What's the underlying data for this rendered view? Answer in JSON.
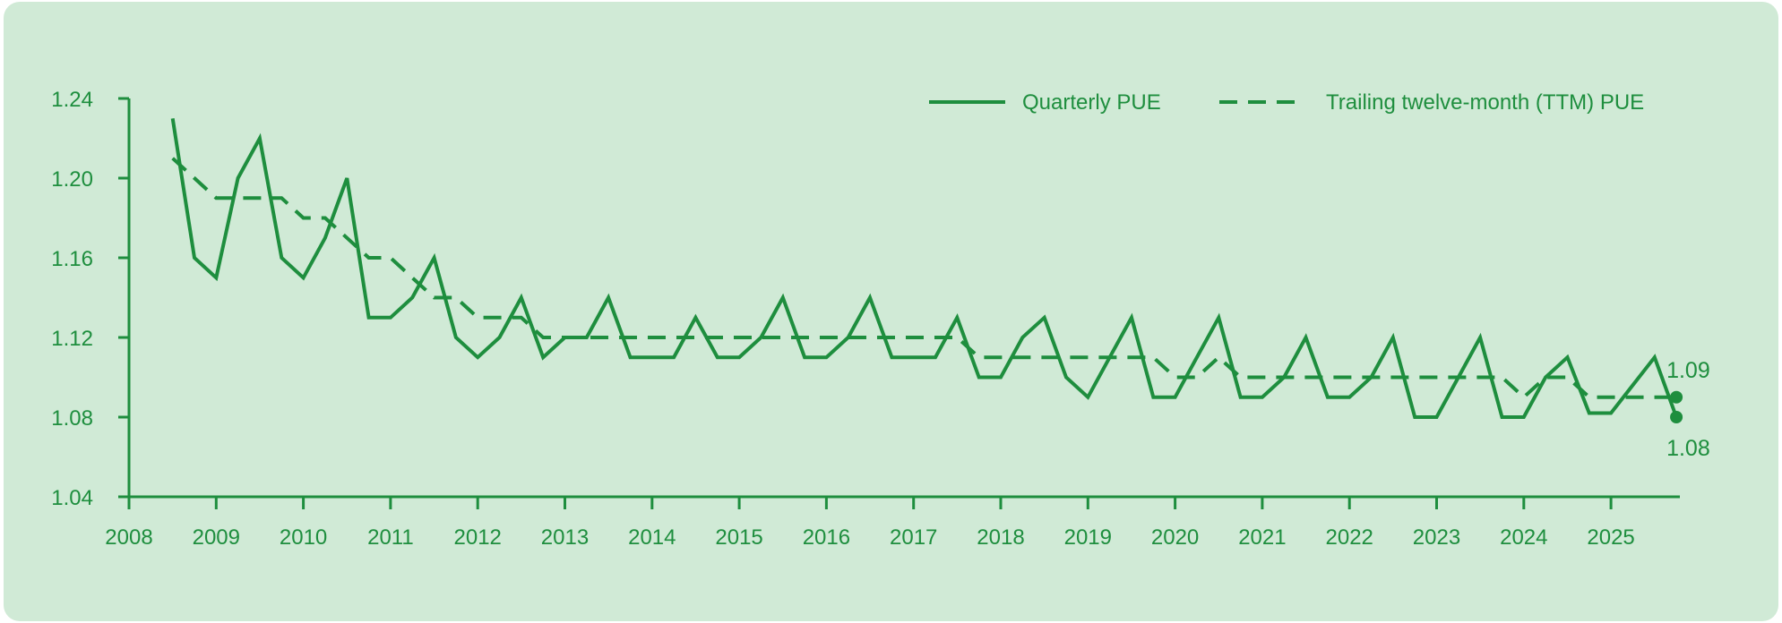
{
  "colors": {
    "background": "#d0ead6",
    "line": "#1e8e3e"
  },
  "legend": {
    "quarterly_label": "Quarterly PUE",
    "ttm_label": "Trailing twelve-month (TTM) PUE",
    "placement": "top-right"
  },
  "chart_data": {
    "type": "line",
    "title": "",
    "xlabel": "",
    "ylabel": "",
    "xlim": [
      2008,
      2026
    ],
    "ylim": [
      1.04,
      1.24
    ],
    "x_ticks": [
      "2008",
      "2009",
      "2010",
      "2011",
      "2012",
      "2013",
      "2014",
      "2015",
      "2016",
      "2017",
      "2018",
      "2019",
      "2020",
      "2021",
      "2022",
      "2023",
      "2024",
      "2025"
    ],
    "y_ticks": [
      "1.04",
      "1.08",
      "1.12",
      "1.16",
      "1.20",
      "1.24"
    ],
    "grid": false,
    "series": [
      {
        "name": "Quarterly PUE",
        "style": "solid",
        "x": [
          2008.5,
          2008.75,
          2009.0,
          2009.25,
          2009.5,
          2009.75,
          2010.0,
          2010.25,
          2010.5,
          2010.75,
          2011.0,
          2011.25,
          2011.5,
          2011.75,
          2012.0,
          2012.25,
          2012.5,
          2012.75,
          2013.0,
          2013.25,
          2013.5,
          2013.75,
          2014.0,
          2014.25,
          2014.5,
          2014.75,
          2015.0,
          2015.25,
          2015.5,
          2015.75,
          2016.0,
          2016.25,
          2016.5,
          2016.75,
          2017.0,
          2017.25,
          2017.5,
          2017.75,
          2018.0,
          2018.25,
          2018.5,
          2018.75,
          2019.0,
          2019.25,
          2019.5,
          2019.75,
          2020.0,
          2020.25,
          2020.5,
          2020.75,
          2021.0,
          2021.25,
          2021.5,
          2021.75,
          2022.0,
          2022.25,
          2022.5,
          2022.75,
          2023.0,
          2023.25,
          2023.5,
          2023.75,
          2024.0,
          2024.25,
          2024.5,
          2024.75,
          2025.0,
          2025.25,
          2025.5,
          2025.75
        ],
        "y": [
          1.23,
          1.16,
          1.15,
          1.2,
          1.22,
          1.16,
          1.15,
          1.17,
          1.2,
          1.13,
          1.13,
          1.14,
          1.16,
          1.12,
          1.11,
          1.12,
          1.14,
          1.11,
          1.12,
          1.12,
          1.14,
          1.11,
          1.11,
          1.11,
          1.13,
          1.11,
          1.11,
          1.12,
          1.14,
          1.11,
          1.11,
          1.12,
          1.14,
          1.11,
          1.11,
          1.11,
          1.13,
          1.1,
          1.1,
          1.12,
          1.13,
          1.1,
          1.09,
          1.11,
          1.13,
          1.09,
          1.09,
          1.11,
          1.13,
          1.09,
          1.09,
          1.1,
          1.12,
          1.09,
          1.09,
          1.1,
          1.12,
          1.08,
          1.08,
          1.1,
          1.12,
          1.08,
          1.08,
          1.1,
          1.11,
          1.082,
          1.082,
          1.096,
          1.11,
          1.08
        ]
      },
      {
        "name": "Trailing twelve-month (TTM) PUE",
        "style": "dashed",
        "x": [
          2008.5,
          2008.75,
          2009.0,
          2009.25,
          2009.5,
          2009.75,
          2010.0,
          2010.25,
          2010.5,
          2010.75,
          2011.0,
          2011.25,
          2011.5,
          2011.75,
          2012.0,
          2012.25,
          2012.5,
          2012.75,
          2013.0,
          2013.25,
          2013.5,
          2013.75,
          2014.0,
          2014.25,
          2014.5,
          2014.75,
          2015.0,
          2015.25,
          2015.5,
          2015.75,
          2016.0,
          2016.25,
          2016.5,
          2016.75,
          2017.0,
          2017.25,
          2017.5,
          2017.75,
          2018.0,
          2018.25,
          2018.5,
          2018.75,
          2019.0,
          2019.25,
          2019.5,
          2019.75,
          2020.0,
          2020.25,
          2020.5,
          2020.75,
          2021.0,
          2021.25,
          2021.5,
          2021.75,
          2022.0,
          2022.25,
          2022.5,
          2022.75,
          2023.0,
          2023.25,
          2023.5,
          2023.75,
          2024.0,
          2024.25,
          2024.5,
          2024.75,
          2025.0,
          2025.25,
          2025.5,
          2025.75
        ],
        "y": [
          1.21,
          1.2,
          1.19,
          1.19,
          1.19,
          1.19,
          1.18,
          1.18,
          1.17,
          1.16,
          1.16,
          1.15,
          1.14,
          1.14,
          1.13,
          1.13,
          1.13,
          1.12,
          1.12,
          1.12,
          1.12,
          1.12,
          1.12,
          1.12,
          1.12,
          1.12,
          1.12,
          1.12,
          1.12,
          1.12,
          1.12,
          1.12,
          1.12,
          1.12,
          1.12,
          1.12,
          1.12,
          1.11,
          1.11,
          1.11,
          1.11,
          1.11,
          1.11,
          1.11,
          1.11,
          1.11,
          1.1,
          1.1,
          1.11,
          1.1,
          1.1,
          1.1,
          1.1,
          1.1,
          1.1,
          1.1,
          1.1,
          1.1,
          1.1,
          1.1,
          1.1,
          1.1,
          1.09,
          1.1,
          1.1,
          1.09,
          1.09,
          1.09,
          1.09,
          1.09
        ]
      }
    ],
    "annotations": [
      {
        "text": "1.09",
        "series": "Trailing twelve-month (TTM) PUE",
        "x": 2025.75,
        "y": 1.09,
        "position": "above"
      },
      {
        "text": "1.08",
        "series": "Quarterly PUE",
        "x": 2025.75,
        "y": 1.08,
        "position": "below"
      }
    ]
  }
}
